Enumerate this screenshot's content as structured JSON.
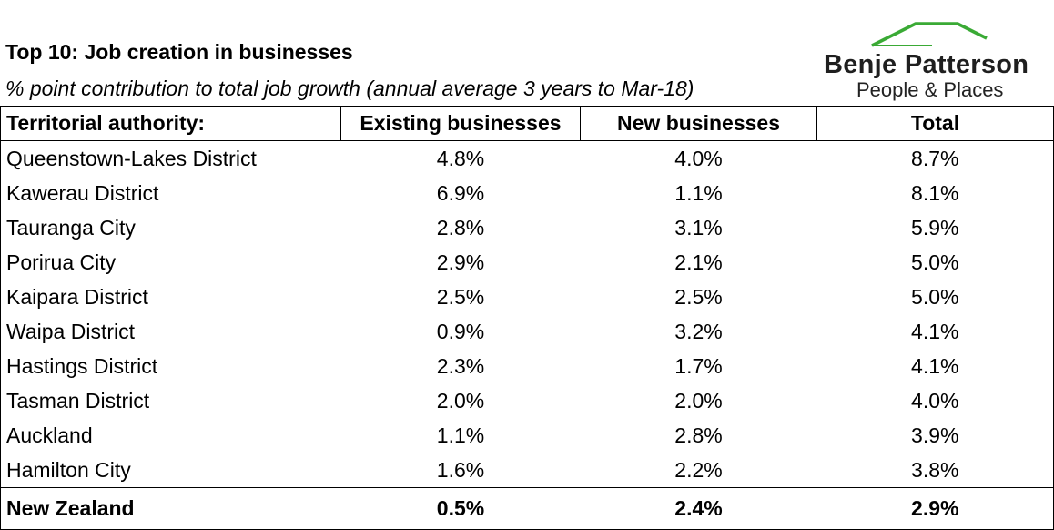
{
  "chart_data": {
    "type": "table",
    "title": "Top 10: Job creation in businesses",
    "subtitle": "% point contribution to total job growth (annual average 3 years to Mar-18)",
    "columns": [
      "Territorial authority:",
      "Existing businesses",
      "New businesses",
      "Total"
    ],
    "rows": [
      [
        "Queenstown-Lakes District",
        "4.8%",
        "4.0%",
        "8.7%"
      ],
      [
        "Kawerau District",
        "6.9%",
        "1.1%",
        "8.1%"
      ],
      [
        "Tauranga City",
        "2.8%",
        "3.1%",
        "5.9%"
      ],
      [
        "Porirua City",
        "2.9%",
        "2.1%",
        "5.0%"
      ],
      [
        "Kaipara District",
        "2.5%",
        "2.5%",
        "5.0%"
      ],
      [
        "Waipa District",
        "0.9%",
        "3.2%",
        "4.1%"
      ],
      [
        "Hastings District",
        "2.3%",
        "1.7%",
        "4.1%"
      ],
      [
        "Tasman District",
        "2.0%",
        "2.0%",
        "4.0%"
      ],
      [
        "Auckland",
        "1.1%",
        "2.8%",
        "3.9%"
      ],
      [
        "Hamilton City",
        "1.6%",
        "2.2%",
        "3.8%"
      ]
    ],
    "summary_row": [
      "New Zealand",
      "0.5%",
      "2.4%",
      "2.9%"
    ]
  },
  "logo": {
    "name": "Benje Patterson",
    "tagline": "People & Places",
    "accent_color": "#3aaa35"
  }
}
